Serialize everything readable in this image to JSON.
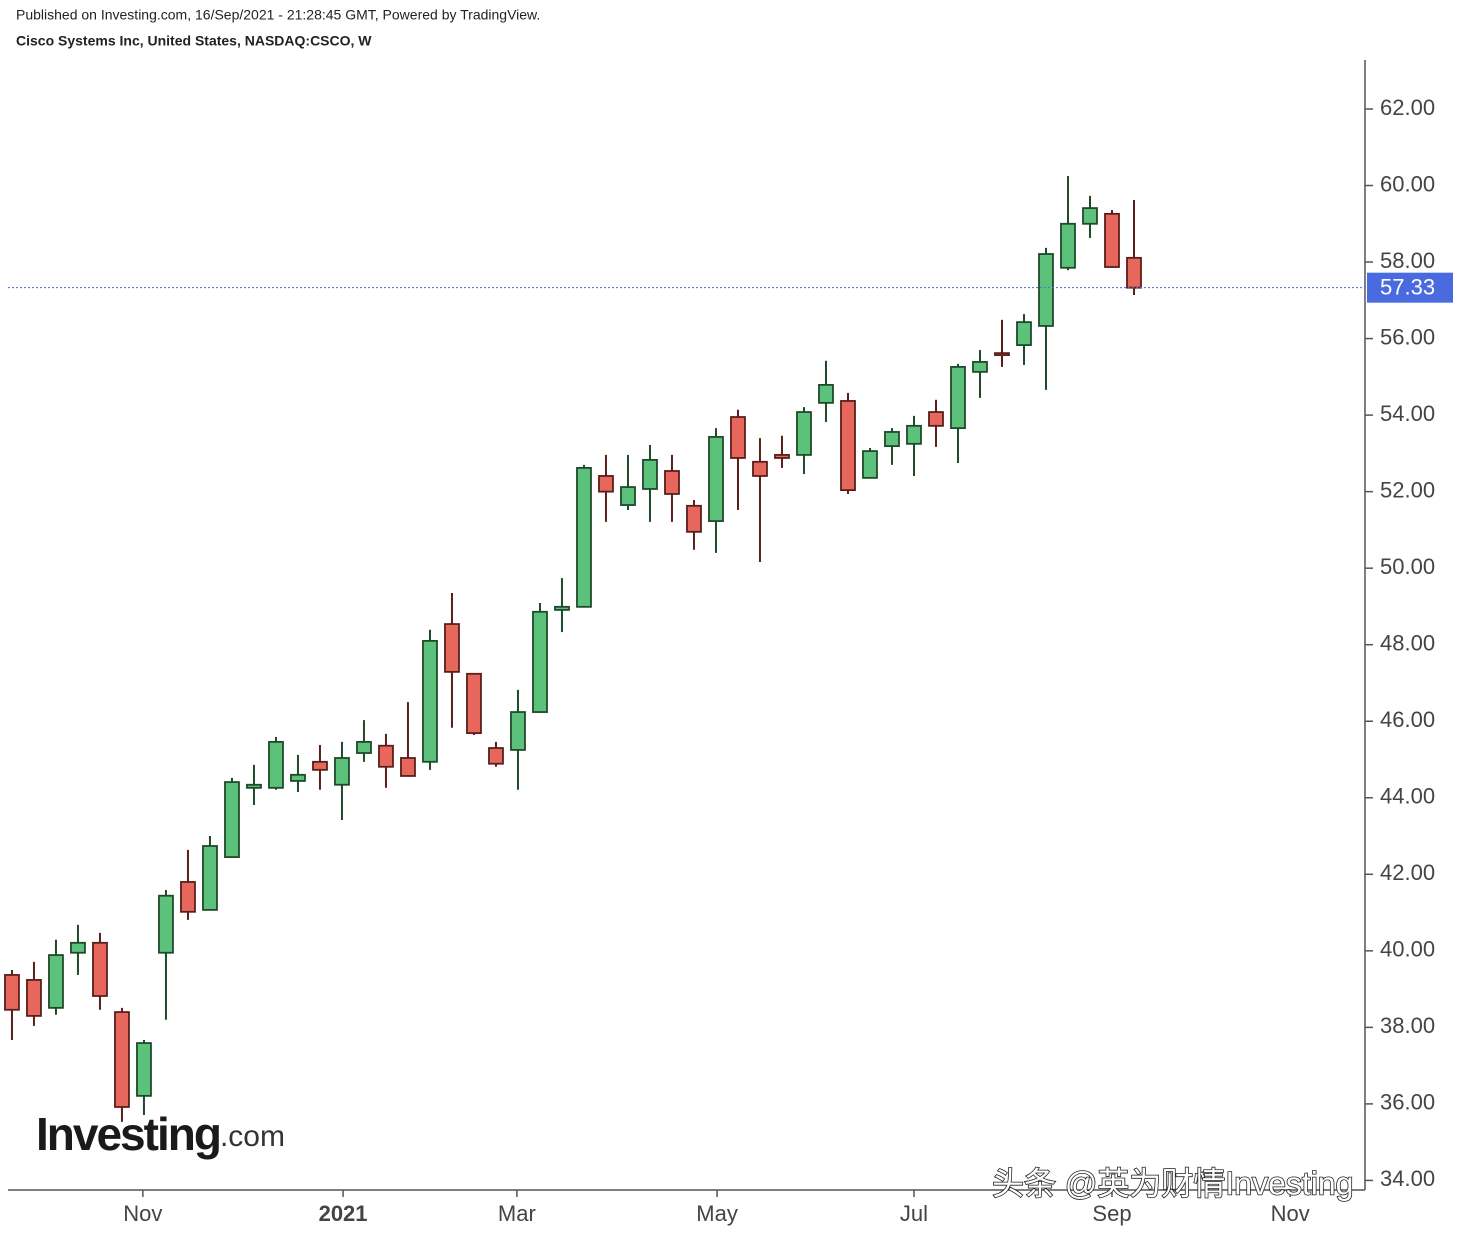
{
  "chart_data": {
    "type": "candlestick",
    "subtitle": "Published on Investing.com, 16/Sep/2021 - 21:28:45 GMT, Powered by TradingView.",
    "title": "Cisco Systems Inc, United States, NASDAQ:CSCO, W",
    "logo": [
      "Investing",
      ".com"
    ],
    "watermark": "头条 @英为财情Investing",
    "x": [
      0,
      1,
      2,
      3,
      4,
      5,
      6,
      7,
      8,
      9,
      10,
      11,
      12,
      13,
      14,
      15,
      16,
      17,
      18,
      19,
      20,
      21,
      22,
      23,
      24,
      25,
      26,
      27,
      28,
      29,
      30,
      31,
      32,
      33,
      34,
      35,
      36,
      37,
      38,
      39,
      40,
      41,
      42,
      43,
      44,
      45,
      46,
      47,
      48,
      49,
      50,
      51
    ],
    "open": [
      39.37,
      39.24,
      38.51,
      39.95,
      40.21,
      38.4,
      36.21,
      39.95,
      41.8,
      41.07,
      42.45,
      44.26,
      44.26,
      44.44,
      44.94,
      44.34,
      45.17,
      45.36,
      45.04,
      44.94,
      48.54,
      47.24,
      45.3,
      45.25,
      46.24,
      48.91,
      48.99,
      52.41,
      51.65,
      52.07,
      52.54,
      51.63,
      51.23,
      53.95,
      52.78,
      52.96,
      52.96,
      54.32,
      54.37,
      52.36,
      53.19,
      53.25,
      54.08,
      53.66,
      55.13,
      55.62,
      55.83,
      56.33,
      57.85,
      59.0,
      59.26,
      58.11
    ],
    "high": [
      39.5,
      39.71,
      40.29,
      40.68,
      40.47,
      38.51,
      37.67,
      41.59,
      42.64,
      43.0,
      44.52,
      44.86,
      45.59,
      45.12,
      45.38,
      45.46,
      46.03,
      45.67,
      46.5,
      48.39,
      49.35,
      47.24,
      45.46,
      46.82,
      49.09,
      49.74,
      52.7,
      52.96,
      52.96,
      53.22,
      52.96,
      51.78,
      53.66,
      54.14,
      53.4,
      53.46,
      54.21,
      55.42,
      54.58,
      53.14,
      53.66,
      53.98,
      54.4,
      55.34,
      55.7,
      56.49,
      56.64,
      58.37,
      60.25,
      59.73,
      59.36,
      59.62
    ],
    "low": [
      37.67,
      38.04,
      38.33,
      39.37,
      38.46,
      35.53,
      35.71,
      38.2,
      40.81,
      41.07,
      42.45,
      43.81,
      44.21,
      44.15,
      44.21,
      43.42,
      44.94,
      44.26,
      44.57,
      44.73,
      45.83,
      45.64,
      44.81,
      44.21,
      46.24,
      48.33,
      48.99,
      51.21,
      51.52,
      51.21,
      51.21,
      50.48,
      50.4,
      51.52,
      50.16,
      52.62,
      52.46,
      53.82,
      51.94,
      52.36,
      52.7,
      52.41,
      53.17,
      52.75,
      54.45,
      55.26,
      55.31,
      54.66,
      57.79,
      58.63,
      57.87,
      57.14
    ],
    "close": [
      38.46,
      38.3,
      39.89,
      40.21,
      38.82,
      35.92,
      37.59,
      41.44,
      41.02,
      42.74,
      44.41,
      44.34,
      45.46,
      44.6,
      44.73,
      45.04,
      45.46,
      44.81,
      44.57,
      48.1,
      47.29,
      45.69,
      44.89,
      46.24,
      48.86,
      48.99,
      52.62,
      52.0,
      52.12,
      52.83,
      51.94,
      50.95,
      53.43,
      52.88,
      52.41,
      52.88,
      54.08,
      54.79,
      52.04,
      53.06,
      53.56,
      53.72,
      53.72,
      55.26,
      55.39,
      55.57,
      56.43,
      58.21,
      59.0,
      59.41,
      57.87,
      57.33
    ],
    "up_color": "#5cc17b",
    "down_color": "#e8675c",
    "last_price": 57.33,
    "last_price_color": "#4a6be0",
    "xlim": [
      -0.18,
      61.5
    ],
    "xticks": [
      {
        "value": 5.95,
        "label": "Nov"
      },
      {
        "value": 15.05,
        "label": "2021"
      },
      {
        "value": 22.95,
        "label": "Mar"
      },
      {
        "value": 32.05,
        "label": "May"
      },
      {
        "value": 41.0,
        "label": "Jul"
      },
      {
        "value": 50.0,
        "label": "Sep"
      },
      {
        "value": 58.1,
        "label": "Nov"
      }
    ],
    "ylim": [
      33.75,
      63.28
    ],
    "yticks": [
      {
        "value": 34,
        "label": "34.00"
      },
      {
        "value": 36,
        "label": "36.00"
      },
      {
        "value": 38,
        "label": "38.00"
      },
      {
        "value": 40,
        "label": "40.00"
      },
      {
        "value": 42,
        "label": "42.00"
      },
      {
        "value": 44,
        "label": "44.00"
      },
      {
        "value": 46,
        "label": "46.00"
      },
      {
        "value": 48,
        "label": "48.00"
      },
      {
        "value": 50,
        "label": "50.00"
      },
      {
        "value": 52,
        "label": "52.00"
      },
      {
        "value": 54,
        "label": "54.00"
      },
      {
        "value": 56,
        "label": "56.00"
      },
      {
        "value": 58,
        "label": "58.00"
      },
      {
        "value": 60,
        "label": "60.00"
      },
      {
        "value": 62,
        "label": "62.00"
      }
    ]
  }
}
